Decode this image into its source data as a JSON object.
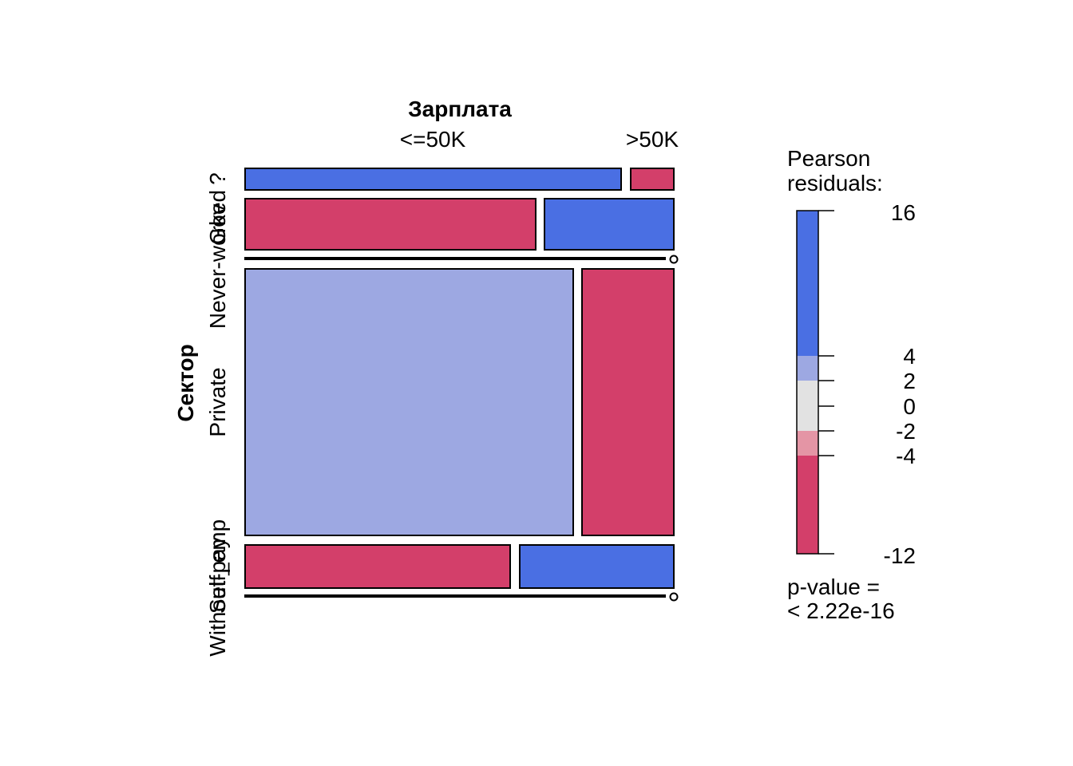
{
  "chart_data": {
    "type": "mosaic",
    "x_variable": "Зарплата",
    "y_variable": "Сектор",
    "x_categories": [
      "<=50K",
      ">50K"
    ],
    "y_categories": [
      "Gov",
      "Never-worked",
      "Private",
      "Self_emp",
      "Without-pay",
      "?"
    ],
    "cells": [
      {
        "row": "?",
        "col": "<=50K",
        "share": 0.897,
        "residual": 8
      },
      {
        "row": "?",
        "col": ">50K",
        "share": 0.103,
        "residual": -8
      },
      {
        "row": "Gov",
        "col": "<=50K",
        "share": 0.68,
        "residual": -8
      },
      {
        "row": "Gov",
        "col": ">50K",
        "share": 0.32,
        "residual": 14
      },
      {
        "row": "Never-worked",
        "col": "<=50K",
        "share": 1.0,
        "residual": 0
      },
      {
        "row": "Never-worked",
        "col": ">50K",
        "share": 0.0,
        "residual": 0
      },
      {
        "row": "Private",
        "col": "<=50K",
        "share": 0.78,
        "residual": 3
      },
      {
        "row": "Private",
        "col": ">50K",
        "share": 0.22,
        "residual": -6
      },
      {
        "row": "Self_emp",
        "col": "<=50K",
        "share": 0.63,
        "residual": -7
      },
      {
        "row": "Self_emp",
        "col": ">50K",
        "share": 0.37,
        "residual": 12
      },
      {
        "row": "Without-pay",
        "col": "<=50K",
        "share": 1.0,
        "residual": 0
      },
      {
        "row": "Without-pay",
        "col": ">50K",
        "share": 0.0,
        "residual": 0
      }
    ],
    "row_order_top_to_bottom": [
      "?",
      "Gov",
      "Never-worked",
      "Private",
      "Self_emp",
      "Without-pay"
    ],
    "row_shares": [
      0.056,
      0.134,
      0.0003,
      0.697,
      0.112,
      0.0004
    ],
    "legend": {
      "title_line1": "Pearson",
      "title_line2": "residuals:",
      "breaks": [
        16,
        4,
        2,
        0,
        -2,
        -4,
        -12
      ],
      "bands": [
        {
          "from": 4,
          "to": 16,
          "color": "#4A6FE3"
        },
        {
          "from": 2,
          "to": 4,
          "color": "#9DA8E2"
        },
        {
          "from": -2,
          "to": 2,
          "color": "#E2E2E2"
        },
        {
          "from": -4,
          "to": -2,
          "color": "#E495A5"
        },
        {
          "from": -12,
          "to": -4,
          "color": "#D33F6A"
        }
      ],
      "pvalue_line1": "p-value =",
      "pvalue_line2": "< 2.22e-16"
    }
  }
}
